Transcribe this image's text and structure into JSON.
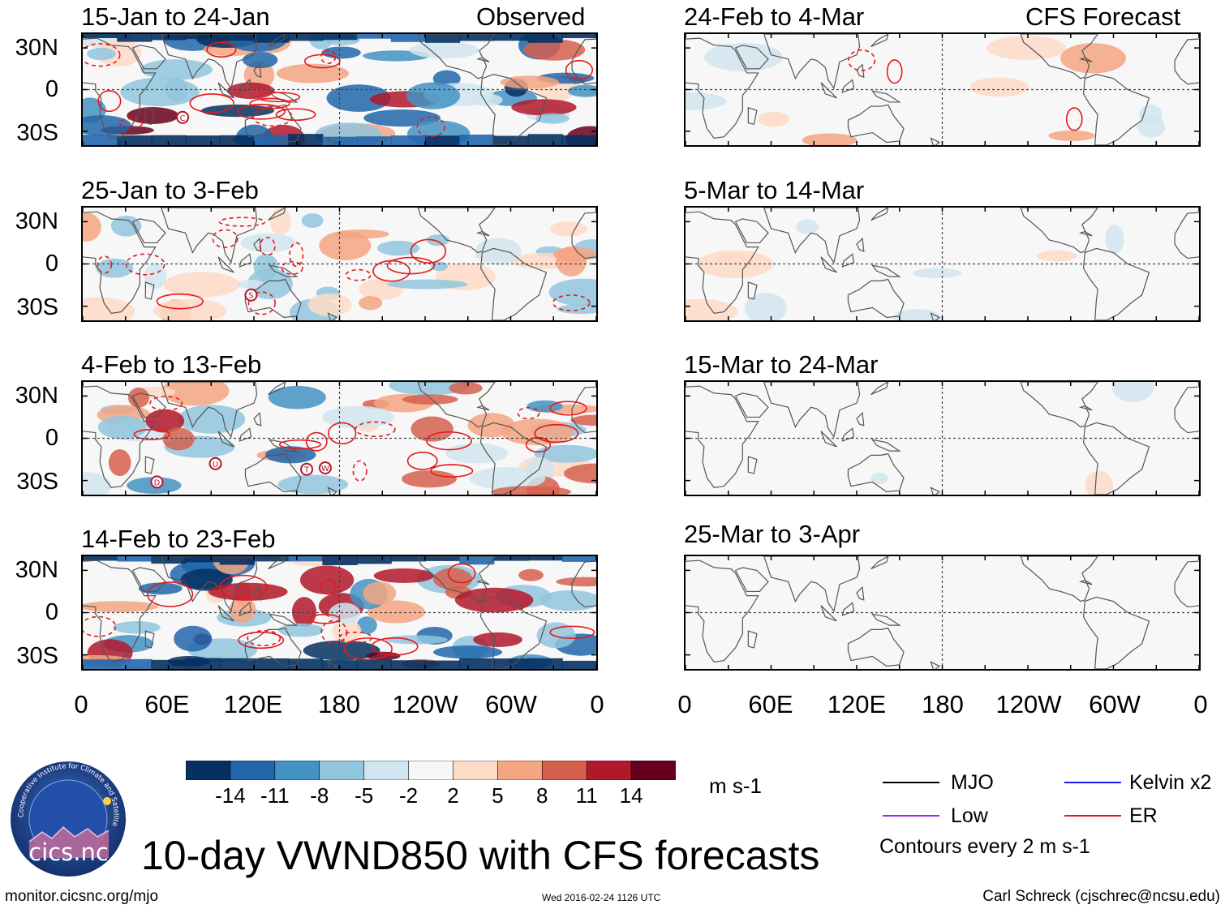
{
  "figure": {
    "title": "10-day VWND850 with CFS forecasts",
    "units": "m s-1",
    "url": "monitor.cicsnc.org/mjo",
    "timestamp": "Wed 2016-02-24 1126 UTC",
    "author": "Carl Schreck (cjschrec@ncsu.edu)",
    "logo_text": "cics.nc",
    "logo_ring_text": "Cooperative Institute for Climate and Satellites",
    "contour_note": "Contours every 2 m s-1"
  },
  "columns": {
    "left_label": "Observed",
    "right_label": "CFS Forecast"
  },
  "axes": {
    "y_ticks": [
      "30N",
      "0",
      "30S"
    ],
    "x_ticks": [
      "0",
      "60E",
      "120E",
      "180",
      "120W",
      "60W",
      "0"
    ]
  },
  "chart_data": {
    "type": "heatmap",
    "variable": "850-hPa meridional wind anomaly (10-day means)",
    "colorbar": {
      "levels": [
        -14,
        -11,
        -8,
        -5,
        -2,
        2,
        5,
        8,
        11,
        14
      ],
      "labels": [
        "-14",
        "-11",
        "-8",
        "-5",
        "-2",
        "2",
        "5",
        "8",
        "11",
        "14"
      ],
      "colors": [
        "#053061",
        "#2166ac",
        "#4393c3",
        "#92c5de",
        "#d1e5f0",
        "#f7f7f7",
        "#fddbc7",
        "#f4a582",
        "#d6604d",
        "#b2182b",
        "#67001f"
      ]
    },
    "panels": [
      {
        "column": "Observed",
        "period": "15-Jan to 24-Jan",
        "intensity": "strong"
      },
      {
        "column": "Observed",
        "period": "25-Jan to 3-Feb",
        "intensity": "weak"
      },
      {
        "column": "Observed",
        "period": "4-Feb to 13-Feb",
        "intensity": "moderate"
      },
      {
        "column": "Observed",
        "period": "14-Feb to 23-Feb",
        "intensity": "strong"
      },
      {
        "column": "CFS Forecast",
        "period": "24-Feb to 4-Mar",
        "intensity": "weak"
      },
      {
        "column": "CFS Forecast",
        "period": "5-Mar to 14-Mar",
        "intensity": "weak"
      },
      {
        "column": "CFS Forecast",
        "period": "15-Mar to 24-Mar",
        "intensity": "very weak"
      },
      {
        "column": "CFS Forecast",
        "period": "25-Mar to 3-Apr",
        "intensity": "very weak"
      }
    ],
    "contour_legend": [
      {
        "name": "MJO",
        "color": "#000000"
      },
      {
        "name": "Kelvin x2",
        "color": "#1a1aff"
      },
      {
        "name": "Low",
        "color": "#a020f0"
      },
      {
        "name": "ER",
        "color": "#e31a1c"
      }
    ],
    "storm_markers": {
      "15-Jan to 24-Jan": [
        "C"
      ],
      "25-Jan to 3-Feb": [
        "S"
      ],
      "4-Feb to 13-Feb": [
        "D",
        "U",
        "T",
        "W"
      ]
    }
  }
}
